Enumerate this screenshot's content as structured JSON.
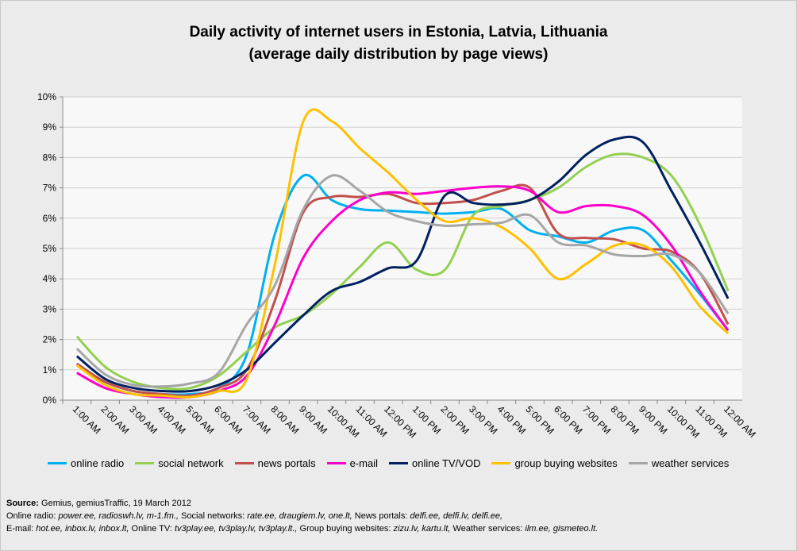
{
  "chart_data": {
    "type": "line",
    "title": "Daily activity of internet users in Estonia, Latvia, Lithuania",
    "subtitle": "(average daily distribution by page views)",
    "categories": [
      "1:00 AM",
      "2:00 AM",
      "3:00 AM",
      "4:00 AM",
      "5:00 AM",
      "6:00 AM",
      "7:00 AM",
      "8:00 AM",
      "9:00 AM",
      "10:00 AM",
      "11:00 AM",
      "12:00 PM",
      "1:00 PM",
      "2:00 PM",
      "3:00 PM",
      "4:00 PM",
      "5:00 PM",
      "6:00 PM",
      "7:00 PM",
      "8:00 PM",
      "9:00 PM",
      "10:00 PM",
      "11:00 PM",
      "12:00 AM"
    ],
    "ylim": [
      0,
      10
    ],
    "yticks": [
      "0%",
      "1%",
      "2%",
      "3%",
      "4%",
      "5%",
      "6%",
      "7%",
      "8%",
      "9%",
      "10%"
    ],
    "grid": true,
    "legend_position": "bottom",
    "series": [
      {
        "name": "online radio",
        "color": "#00b0f0",
        "values": [
          1.2,
          0.6,
          0.3,
          0.2,
          0.2,
          0.4,
          1.5,
          5.5,
          7.4,
          6.6,
          6.3,
          6.25,
          6.2,
          6.15,
          6.2,
          6.3,
          5.6,
          5.4,
          5.2,
          5.6,
          5.6,
          4.6,
          3.5,
          2.3
        ]
      },
      {
        "name": "social network",
        "color": "#92d050",
        "values": [
          2.1,
          1.1,
          0.6,
          0.4,
          0.4,
          0.8,
          1.6,
          2.4,
          2.8,
          3.5,
          4.4,
          5.2,
          4.3,
          4.3,
          6.1,
          6.4,
          6.6,
          7.0,
          7.7,
          8.1,
          8.0,
          7.4,
          5.8,
          3.6
        ]
      },
      {
        "name": "news portals",
        "color": "#c0504d",
        "values": [
          1.2,
          0.6,
          0.3,
          0.2,
          0.15,
          0.4,
          1.0,
          3.3,
          6.2,
          6.7,
          6.7,
          6.8,
          6.5,
          6.5,
          6.6,
          6.9,
          7.0,
          5.5,
          5.35,
          5.3,
          5.0,
          4.9,
          4.2,
          2.5
        ]
      },
      {
        "name": "e-mail",
        "color": "#ff00cc",
        "values": [
          0.9,
          0.4,
          0.2,
          0.1,
          0.1,
          0.3,
          0.8,
          2.5,
          4.7,
          5.9,
          6.6,
          6.85,
          6.8,
          6.9,
          7.0,
          7.05,
          6.9,
          6.2,
          6.4,
          6.4,
          6.1,
          5.1,
          3.6,
          2.3
        ]
      },
      {
        "name": "online TV/VOD",
        "color": "#002060",
        "values": [
          1.45,
          0.7,
          0.4,
          0.3,
          0.3,
          0.5,
          1.0,
          1.9,
          2.8,
          3.6,
          3.9,
          4.35,
          4.6,
          6.75,
          6.5,
          6.45,
          6.6,
          7.2,
          8.1,
          8.6,
          8.5,
          6.9,
          5.2,
          3.35
        ]
      },
      {
        "name": "group buying websites",
        "color": "#ffc000",
        "values": [
          1.15,
          0.5,
          0.2,
          0.15,
          0.1,
          0.3,
          0.7,
          4.5,
          9.2,
          9.2,
          8.3,
          7.5,
          6.6,
          5.9,
          6.0,
          5.7,
          5.0,
          4.0,
          4.5,
          5.1,
          5.1,
          4.4,
          3.1,
          2.2
        ]
      },
      {
        "name": "weather services",
        "color": "#a6a6a6",
        "values": [
          1.7,
          0.85,
          0.5,
          0.45,
          0.55,
          0.9,
          2.5,
          3.8,
          6.3,
          7.4,
          6.9,
          6.2,
          5.9,
          5.75,
          5.8,
          5.85,
          6.1,
          5.2,
          5.1,
          4.8,
          4.75,
          4.8,
          4.2,
          2.85
        ]
      }
    ]
  },
  "source": {
    "label": "Source:",
    "text": " Gemius, gemiusTraffic,  19 March 2012",
    "line2": [
      [
        "Online radio: ",
        ""
      ],
      [
        "",
        "power.ee,  radioswh.lv,  m-1.fm.,"
      ],
      [
        " Social networks: ",
        ""
      ],
      [
        "",
        "rate.ee,  draugiem.lv,  one.lt,"
      ],
      [
        " News portals: ",
        ""
      ],
      [
        "",
        "delfi.ee,  delfi.lv,  delfi.ee,"
      ]
    ],
    "line3": [
      [
        "E-mail: ",
        ""
      ],
      [
        "",
        "hot.ee,  inbox.lv,  inbox.lt,"
      ],
      [
        " Online TV: ",
        ""
      ],
      [
        "",
        "tv3play.ee,  tv3play.lv,  tv3play.lt.,"
      ],
      [
        " Group buying websites: ",
        ""
      ],
      [
        "",
        "zizu.lv,  kartu.lt,"
      ],
      [
        " Weather services: ",
        ""
      ],
      [
        "",
        "ilm.ee,  gismeteo.lt."
      ]
    ]
  }
}
